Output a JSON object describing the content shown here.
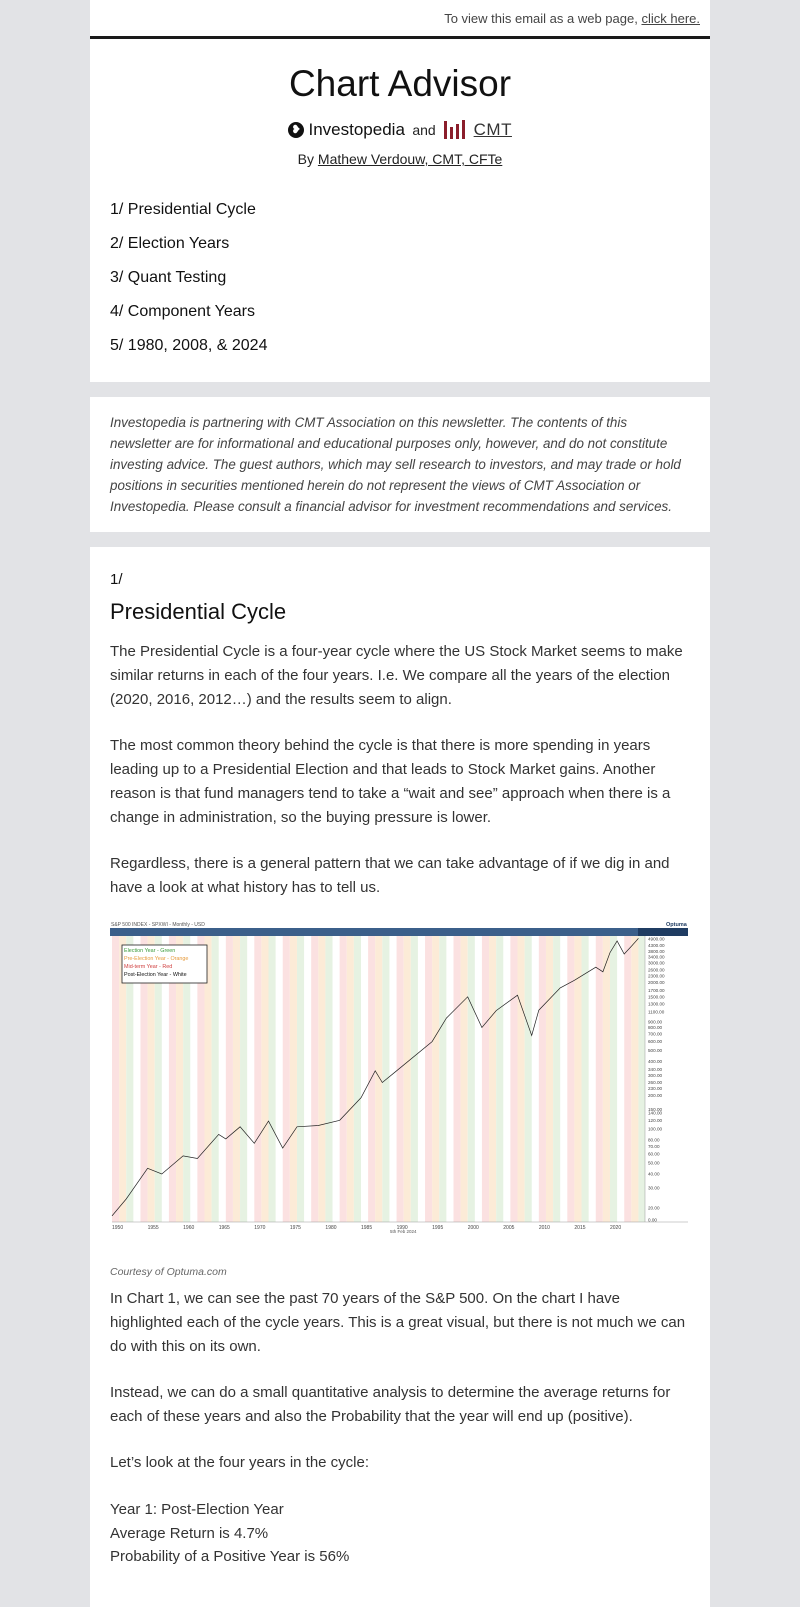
{
  "top": {
    "text": "To view this email as a web page, ",
    "link": "click here."
  },
  "header": {
    "title": "Chart Advisor",
    "logo_investopedia": "Investopedia",
    "logo_and": "and",
    "logo_cmt": "CMT",
    "byline_prefix": "By ",
    "byline_author": "Mathew Verdouw, CMT, CFTe",
    "toc": [
      "1/ Presidential Cycle",
      "2/ Election Years",
      "3/ Quant Testing",
      "4/ Component Years",
      "5/ 1980, 2008, & 2024"
    ]
  },
  "disclaimer": "Investopedia is partnering with CMT Association on this newsletter.  The contents of this newsletter are for informational and educational purposes only, however, and do not constitute investing advice. The guest authors, which may sell research to investors, and may trade or hold positions in securities mentioned herein do not represent the views of CMT Association or Investopedia. Please consult a financial advisor for investment recommendations and services.",
  "section": {
    "number": "1/",
    "heading": "Presidential Cycle",
    "p1": "The Presidential Cycle is a four-year cycle where the US Stock Market seems to make similar returns in each of the four years. I.e. We compare all the years of the election (2020, 2016, 2012…) and the results seem to align.",
    "p2": "The most common theory behind the cycle is that there is more spending in years leading up to a Presidential Election and that leads to Stock Market gains. Another reason is that fund managers tend to take a “wait and see” approach when there is a change in administration, so the buying pressure is lower.",
    "p3": "Regardless, there is a general pattern that we can take advantage of if we dig in and have a look at what history has to tell us.",
    "caption": "Courtesy of Optuma.com",
    "p4": "In Chart 1, we can see the past 70 years of the S&P 500. On the chart I have highlighted each of the cycle years. This is a great visual, but there is not much we can do with this on its own.",
    "p5": "Instead, we can do a small quantitative analysis to determine the average returns for each of these years and also the Probability that the year will end up (positive).",
    "p6": "Let’s look at the four years in the cycle:",
    "year1_title": "Year 1: Post-Election Year",
    "year1_avg": "Average Return is 4.7%",
    "year1_prob": "Probability of a Positive Year is 56%"
  },
  "chart": {
    "title": "S&P 500 INDEX - SPXWI - Monthly - USD",
    "brand": "Optuma",
    "date_label": "5th Feb 2024",
    "legend": [
      {
        "label": "Election Year - Green",
        "color": "#3a9a3a"
      },
      {
        "label": "Pre-Election Year - Orange",
        "color": "#e69a3a"
      },
      {
        "label": "Mid-term Year - Red",
        "color": "#d04040"
      },
      {
        "label": "Post-Election Year - White",
        "color": "#111111"
      }
    ],
    "x_ticks": [
      "1950",
      "1955",
      "1960",
      "1965",
      "1970",
      "1975",
      "1980",
      "1985",
      "1990",
      "1995",
      "2000",
      "2005",
      "2010",
      "2015",
      "2020"
    ],
    "y_ticks": [
      "4900.00",
      "4300.00",
      "3800.00",
      "3400.00",
      "3000.00",
      "2600.00",
      "2300.00",
      "2000.00",
      "1700.00",
      "1500.00",
      "1300.00",
      "1100.00",
      "900.00",
      "800.00",
      "700.00",
      "600.00",
      "500.00",
      "400.00",
      "340.00",
      "300.00",
      "260.00",
      "230.00",
      "200.00",
      "150.00",
      "140.00",
      "120.00",
      "100.00",
      "80.00",
      "70.00",
      "60.00",
      "50.00",
      "40.00",
      "30.00",
      "20.00",
      "0.00"
    ],
    "series": [
      {
        "name": "S&P 500",
        "x": [
          1950,
          1952,
          1955,
          1957,
          1960,
          1962,
          1965,
          1966,
          1968,
          1970,
          1972,
          1974,
          1976,
          1979,
          1982,
          1985,
          1987,
          1988,
          1990,
          1995,
          1997,
          2000,
          2002,
          2004,
          2007,
          2009,
          2010,
          2013,
          2015,
          2018,
          2019,
          2020,
          2021,
          2022,
          2023,
          2024
        ],
        "y": [
          17,
          24,
          45,
          40,
          58,
          55,
          90,
          82,
          105,
          75,
          118,
          68,
          105,
          108,
          120,
          190,
          330,
          260,
          330,
          600,
          970,
          1500,
          800,
          1130,
          1550,
          680,
          1140,
          1800,
          2100,
          2750,
          2500,
          3700,
          4700,
          3600,
          4200,
          4950
        ]
      }
    ]
  }
}
